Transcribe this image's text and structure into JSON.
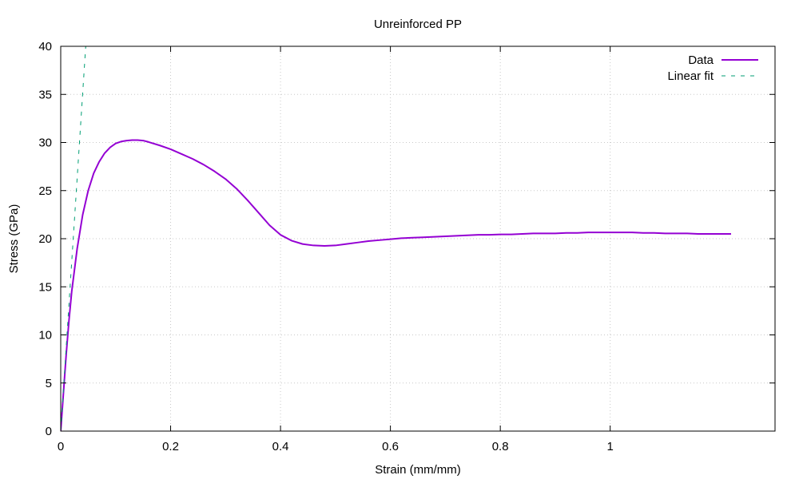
{
  "chart_data": {
    "type": "line",
    "title": "Unreinforced PP",
    "xlabel": "Strain (mm/mm)",
    "ylabel": "Stress (GPa)",
    "xlim": [
      0,
      1.3
    ],
    "ylim": [
      0,
      40
    ],
    "xticks": [
      0,
      0.2,
      0.4,
      0.6,
      0.8,
      1.0
    ],
    "xtick_labels": [
      "0",
      "0.2",
      "0.4",
      "0.6",
      "0.8",
      "1"
    ],
    "yticks": [
      0,
      5,
      10,
      15,
      20,
      25,
      30,
      35,
      40
    ],
    "ytick_labels": [
      "0",
      "5",
      "10",
      "15",
      "20",
      "25",
      "30",
      "35",
      "40"
    ],
    "grid": true,
    "legend_position": "top-right",
    "series": [
      {
        "name": "Data",
        "color": "#9400d3",
        "style": "solid",
        "x": [
          0,
          0.005,
          0.01,
          0.015,
          0.02,
          0.03,
          0.04,
          0.05,
          0.06,
          0.07,
          0.08,
          0.09,
          0.1,
          0.11,
          0.12,
          0.13,
          0.14,
          0.15,
          0.16,
          0.18,
          0.2,
          0.22,
          0.24,
          0.26,
          0.28,
          0.3,
          0.32,
          0.34,
          0.36,
          0.38,
          0.4,
          0.42,
          0.44,
          0.46,
          0.48,
          0.5,
          0.52,
          0.54,
          0.56,
          0.58,
          0.6,
          0.62,
          0.64,
          0.66,
          0.68,
          0.7,
          0.72,
          0.74,
          0.76,
          0.78,
          0.8,
          0.82,
          0.84,
          0.86,
          0.88,
          0.9,
          0.92,
          0.94,
          0.96,
          0.98,
          1.0,
          1.02,
          1.04,
          1.06,
          1.08,
          1.1,
          1.12,
          1.14,
          1.16,
          1.18,
          1.2,
          1.22
        ],
        "y": [
          0,
          4.0,
          8.0,
          11.5,
          14.5,
          19.0,
          22.5,
          25.0,
          26.8,
          28.0,
          28.9,
          29.5,
          29.9,
          30.1,
          30.2,
          30.25,
          30.25,
          30.2,
          30.05,
          29.7,
          29.3,
          28.8,
          28.3,
          27.7,
          27.0,
          26.2,
          25.2,
          24.0,
          22.7,
          21.4,
          20.4,
          19.8,
          19.45,
          19.3,
          19.25,
          19.3,
          19.45,
          19.6,
          19.75,
          19.85,
          19.95,
          20.05,
          20.1,
          20.15,
          20.2,
          20.25,
          20.3,
          20.35,
          20.4,
          20.4,
          20.45,
          20.45,
          20.5,
          20.55,
          20.55,
          20.55,
          20.6,
          20.6,
          20.65,
          20.65,
          20.65,
          20.65,
          20.65,
          20.6,
          20.6,
          20.55,
          20.55,
          20.55,
          20.5,
          20.5,
          20.5,
          20.5
        ]
      },
      {
        "name": "Linear fit",
        "color": "#009e73",
        "style": "dashed",
        "x": [
          0,
          0.0455
        ],
        "y": [
          0,
          40
        ]
      }
    ]
  }
}
